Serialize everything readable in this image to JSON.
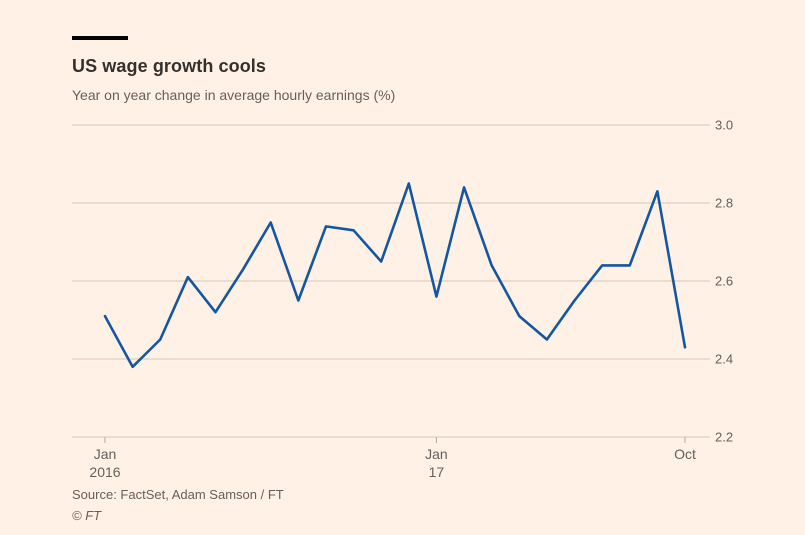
{
  "header": {
    "title": "US wage growth cools",
    "subtitle": "Year on year change in average hourly earnings (%)"
  },
  "chart_data": {
    "type": "line",
    "title": "US wage growth cools",
    "subtitle": "Year on year change in average hourly earnings (%)",
    "x": [
      "Jan 2016",
      "Feb 2016",
      "Mar 2016",
      "Apr 2016",
      "May 2016",
      "Jun 2016",
      "Jul 2016",
      "Aug 2016",
      "Sep 2016",
      "Oct 2016",
      "Nov 2016",
      "Dec 2016",
      "Jan 2017",
      "Feb 2017",
      "Mar 2017",
      "Apr 2017",
      "May 2017",
      "Jun 2017",
      "Jul 2017",
      "Aug 2017",
      "Sep 2017",
      "Oct 2017"
    ],
    "values": [
      2.51,
      2.38,
      2.45,
      2.61,
      2.52,
      2.63,
      2.75,
      2.55,
      2.74,
      2.73,
      2.65,
      2.85,
      2.56,
      2.84,
      2.64,
      2.51,
      2.45,
      2.55,
      2.64,
      2.64,
      2.83,
      2.43
    ],
    "ylim": [
      2.2,
      3.0
    ],
    "yticks": [
      2.2,
      2.4,
      2.6,
      2.8,
      3.0
    ],
    "xticks": [
      {
        "index": 0,
        "line1": "Jan",
        "line2": "2016"
      },
      {
        "index": 12,
        "line1": "Jan",
        "line2": "17"
      },
      {
        "index": 21,
        "line1": "Oct",
        "line2": ""
      }
    ],
    "grid": true,
    "legend": false,
    "xlabel": "",
    "ylabel": ""
  },
  "footer": {
    "source": "Source: FactSet, Adam Samson / FT",
    "copyright": "© FT"
  },
  "colors": {
    "background": "#fff1e5",
    "line": "#1456a0",
    "grid": "#d5c9bc",
    "tick": "#b3a89e",
    "axis_text": "#66605c",
    "title_text": "#33302e",
    "accent_bar": "#000000"
  }
}
